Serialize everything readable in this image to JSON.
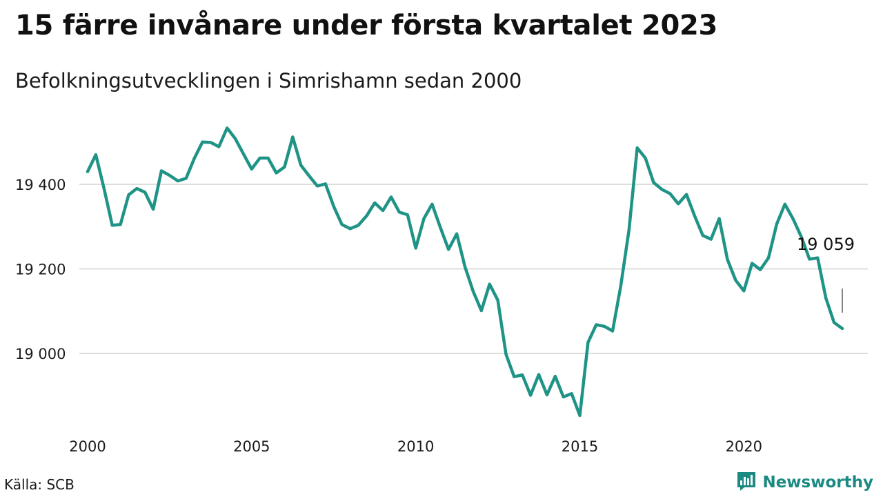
{
  "title": "15 färre invånare under första kvartalet 2023",
  "subtitle": "Befolkningsutvecklingen i Simrishamn sedan 2000",
  "source": "Källa: SCB",
  "brand": {
    "name": "Newsworthy",
    "icon": "bar-chart-logo-icon",
    "color": "#1a8a82"
  },
  "colors": {
    "line": "#1f9486",
    "grid": "#dddddd"
  },
  "chart_data": {
    "type": "line",
    "title": "15 färre invånare under första kvartalet 2023",
    "xlabel": "",
    "ylabel": "",
    "grid": true,
    "x_ticks": [
      "2000",
      "2005",
      "2010",
      "2015",
      "2020"
    ],
    "y_ticks": [
      {
        "value": 19000,
        "label": "19 000"
      },
      {
        "value": 19200,
        "label": "19 200"
      },
      {
        "value": 19400,
        "label": "19 400"
      }
    ],
    "xlim": [
      2000,
      2023
    ],
    "ylim": [
      18800,
      19580
    ],
    "end_label": "19 059",
    "x": [
      2000.0,
      2000.25,
      2000.5,
      2000.75,
      2001.0,
      2001.25,
      2001.5,
      2001.75,
      2002.0,
      2002.25,
      2002.5,
      2002.75,
      2003.0,
      2003.25,
      2003.5,
      2003.75,
      2004.0,
      2004.25,
      2004.5,
      2004.75,
      2005.0,
      2005.25,
      2005.5,
      2005.75,
      2006.0,
      2006.25,
      2006.5,
      2006.75,
      2007.0,
      2007.25,
      2007.5,
      2007.75,
      2008.0,
      2008.25,
      2008.5,
      2008.75,
      2009.0,
      2009.25,
      2009.5,
      2009.75,
      2010.0,
      2010.25,
      2010.5,
      2010.75,
      2011.0,
      2011.25,
      2011.5,
      2011.75,
      2012.0,
      2012.25,
      2012.5,
      2012.75,
      2013.0,
      2013.25,
      2013.5,
      2013.75,
      2014.0,
      2014.25,
      2014.5,
      2014.75,
      2015.0,
      2015.25,
      2015.5,
      2015.75,
      2016.0,
      2016.25,
      2016.5,
      2016.75,
      2017.0,
      2017.25,
      2017.5,
      2017.75,
      2018.0,
      2018.25,
      2018.5,
      2018.75,
      2019.0,
      2019.25,
      2019.5,
      2019.75,
      2020.0,
      2020.25,
      2020.5,
      2020.75,
      2021.0,
      2021.25,
      2021.5,
      2021.75,
      2022.0,
      2022.25,
      2022.5,
      2022.75,
      2023.0
    ],
    "values": [
      19430,
      19470,
      19390,
      19303,
      19305,
      19375,
      19390,
      19381,
      19341,
      19432,
      19421,
      19408,
      19414,
      19461,
      19500,
      19499,
      19489,
      19533,
      19508,
      19472,
      19436,
      19462,
      19462,
      19427,
      19441,
      19512,
      19445,
      19420,
      19396,
      19401,
      19348,
      19305,
      19295,
      19303,
      19325,
      19356,
      19338,
      19370,
      19334,
      19328,
      19249,
      19319,
      19353,
      19298,
      19246,
      19283,
      19205,
      19147,
      19101,
      19164,
      19126,
      18998,
      18945,
      18949,
      18901,
      18950,
      18902,
      18946,
      18897,
      18905,
      18853,
      19026,
      19068,
      19064,
      19053,
      19160,
      19292,
      19486,
      19462,
      19404,
      19388,
      19378,
      19354,
      19376,
      19325,
      19279,
      19270,
      19319,
      19222,
      19173,
      19148,
      19213,
      19198,
      19226,
      19306,
      19353,
      19318,
      19276,
      19223,
      19226,
      19131,
      19073,
      19059
    ]
  }
}
